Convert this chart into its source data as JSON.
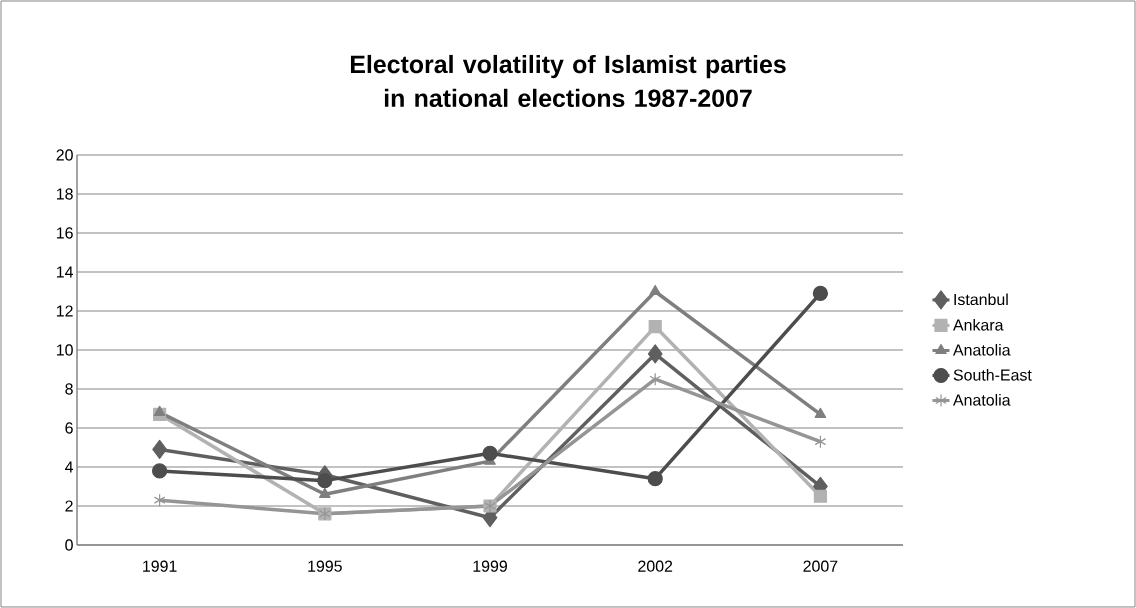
{
  "chart_data": {
    "type": "line",
    "title": "Electoral volatility of Islamist parties in national elections 1987-2007",
    "categories": [
      "1991",
      "1995",
      "1999",
      "2002",
      "2007"
    ],
    "series": [
      {
        "name": "Istanbul",
        "color": "#5f5f5f",
        "marker": "diamond",
        "values": [
          4.9,
          3.6,
          1.4,
          9.8,
          3.0
        ]
      },
      {
        "name": "Ankara",
        "color": "#b2b2b2",
        "marker": "square",
        "values": [
          6.7,
          1.6,
          2.0,
          11.2,
          2.5
        ]
      },
      {
        "name": "Anatolia",
        "color": "#7f7f7f",
        "marker": "triangle",
        "values": [
          6.8,
          2.6,
          4.3,
          13.0,
          6.7
        ]
      },
      {
        "name": "South-East",
        "color": "#4d4d4d",
        "marker": "circle",
        "values": [
          3.8,
          3.3,
          4.7,
          3.4,
          12.9
        ]
      },
      {
        "name": "Anatolia",
        "color": "#959595",
        "marker": "cross",
        "values": [
          2.3,
          1.6,
          2.0,
          8.5,
          5.3
        ]
      }
    ],
    "ylim": [
      0,
      20
    ],
    "yticks": [
      0,
      2,
      4,
      6,
      8,
      10,
      12,
      14,
      16,
      18,
      20
    ],
    "grid": "y",
    "legend": "right",
    "line_style": "solid"
  }
}
